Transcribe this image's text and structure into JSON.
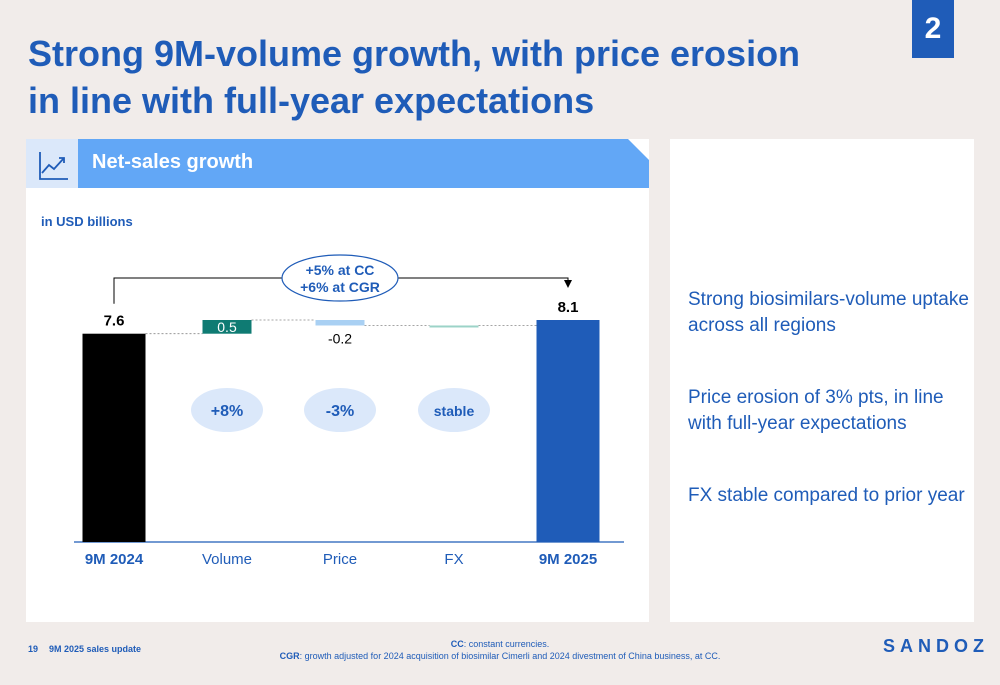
{
  "page_number": "2",
  "title": {
    "line1": "Strong 9M-volume growth, with price erosion",
    "line2": "in line with full-year expectations"
  },
  "panel": {
    "header_title": "Net-sales growth",
    "icon": "line-chart-icon"
  },
  "chart_data": {
    "type": "waterfall",
    "unit_label": "in USD billions",
    "categories": [
      "9M 2024",
      "Volume",
      "Price",
      "FX",
      "9M 2025"
    ],
    "values": [
      7.6,
      0.5,
      -0.2,
      0.0,
      8.1
    ],
    "value_labels": [
      "7.6",
      "0.5",
      "-0.2",
      "",
      "8.1"
    ],
    "kinds": [
      "total",
      "delta",
      "delta",
      "delta",
      "total"
    ],
    "growth_bubbles": [
      "+8%",
      "-3%",
      "stable"
    ],
    "growth_callout": {
      "line1": "+5% at CC",
      "line2": "+6% at CGR"
    },
    "ylim": [
      0,
      8.1
    ],
    "colors": {
      "start_total": "#000000",
      "end_total": "#1f5cb8",
      "positive": "#0f7b73",
      "negative": "#a9d0f3",
      "neutral": "#9cd3c8",
      "bubble": "#dbe8fa",
      "text": "#1f5cb8"
    }
  },
  "points": [
    "Strong biosimilars-volume uptake across all regions",
    "Price erosion of 3% pts, in line with full-year expectations",
    "FX stable compared to prior year"
  ],
  "footer": {
    "page": "19",
    "doc_title": "9M 2025 sales update",
    "note1_key": "CC",
    "note1_text": ": constant currencies.",
    "note2_key": "CGR",
    "note2_text": ": growth adjusted for 2024 acquisition of biosimilar Cimerli and 2024 divestment of China business, at CC."
  },
  "logo": "SANDOZ",
  "colors": {
    "brand": "#1f5cb8",
    "header_bar": "#62a7f6",
    "background": "#f1ecea"
  }
}
